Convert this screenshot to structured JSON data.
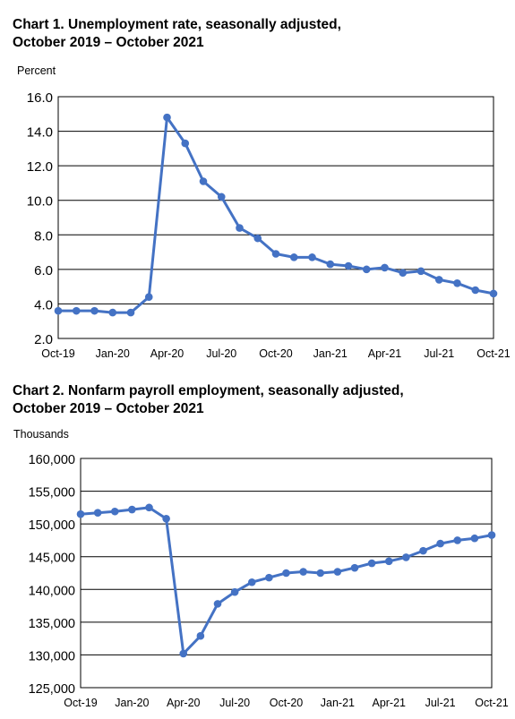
{
  "chart_data": [
    {
      "type": "line",
      "title_line1": "Chart 1. Unemployment rate, seasonally adjusted,",
      "title_line2": "October 2019 – October 2021",
      "ylabel": "Percent",
      "xlabel": "",
      "ylim": [
        2.0,
        16.0
      ],
      "y_ticks": [
        "2.0",
        "4.0",
        "6.0",
        "8.0",
        "10.0",
        "12.0",
        "14.0",
        "16.0"
      ],
      "y_tick_values": [
        2,
        4,
        6,
        8,
        10,
        12,
        14,
        16
      ],
      "x_tick_labels": [
        "Oct-19",
        "Jan-20",
        "Apr-20",
        "Jul-20",
        "Oct-20",
        "Jan-21",
        "Apr-21",
        "Jul-21",
        "Oct-21"
      ],
      "grid": "horizontal",
      "color": "#4472C4",
      "x": [
        "Oct-19",
        "Nov-19",
        "Dec-19",
        "Jan-20",
        "Feb-20",
        "Mar-20",
        "Apr-20",
        "May-20",
        "Jun-20",
        "Jul-20",
        "Aug-20",
        "Sep-20",
        "Oct-20",
        "Nov-20",
        "Dec-20",
        "Jan-21",
        "Feb-21",
        "Mar-21",
        "Apr-21",
        "May-21",
        "Jun-21",
        "Jul-21",
        "Aug-21",
        "Sep-21",
        "Oct-21"
      ],
      "values": [
        3.6,
        3.6,
        3.6,
        3.5,
        3.5,
        4.4,
        14.8,
        13.3,
        11.1,
        10.2,
        8.4,
        7.8,
        6.9,
        6.7,
        6.7,
        6.3,
        6.2,
        6.0,
        6.1,
        5.8,
        5.9,
        5.4,
        5.2,
        4.8,
        4.6
      ]
    },
    {
      "type": "line",
      "title_line1": "Chart 2. Nonfarm payroll employment, seasonally adjusted,",
      "title_line2": "October 2019 – October 2021",
      "ylabel": "Thousands",
      "xlabel": "",
      "ylim": [
        125000,
        160000
      ],
      "y_ticks": [
        "125,000",
        "130,000",
        "135,000",
        "140,000",
        "145,000",
        "150,000",
        "155,000",
        "160,000"
      ],
      "y_tick_values": [
        125000,
        130000,
        135000,
        140000,
        145000,
        150000,
        155000,
        160000
      ],
      "x_tick_labels": [
        "Oct-19",
        "Jan-20",
        "Apr-20",
        "Jul-20",
        "Oct-20",
        "Jan-21",
        "Apr-21",
        "Jul-21",
        "Oct-21"
      ],
      "grid": "horizontal",
      "color": "#4472C4",
      "x": [
        "Oct-19",
        "Nov-19",
        "Dec-19",
        "Jan-20",
        "Feb-20",
        "Mar-20",
        "Apr-20",
        "May-20",
        "Jun-20",
        "Jul-20",
        "Aug-20",
        "Sep-20",
        "Oct-20",
        "Nov-20",
        "Dec-20",
        "Jan-21",
        "Feb-21",
        "Mar-21",
        "Apr-21",
        "May-21",
        "Jun-21",
        "Jul-21",
        "Aug-21",
        "Sep-21",
        "Oct-21"
      ],
      "values": [
        151500,
        151700,
        151900,
        152200,
        152500,
        150800,
        130200,
        132900,
        137800,
        139600,
        141100,
        141800,
        142500,
        142700,
        142500,
        142700,
        143300,
        144000,
        144300,
        144900,
        145900,
        147000,
        147500,
        147800,
        148300
      ]
    }
  ]
}
